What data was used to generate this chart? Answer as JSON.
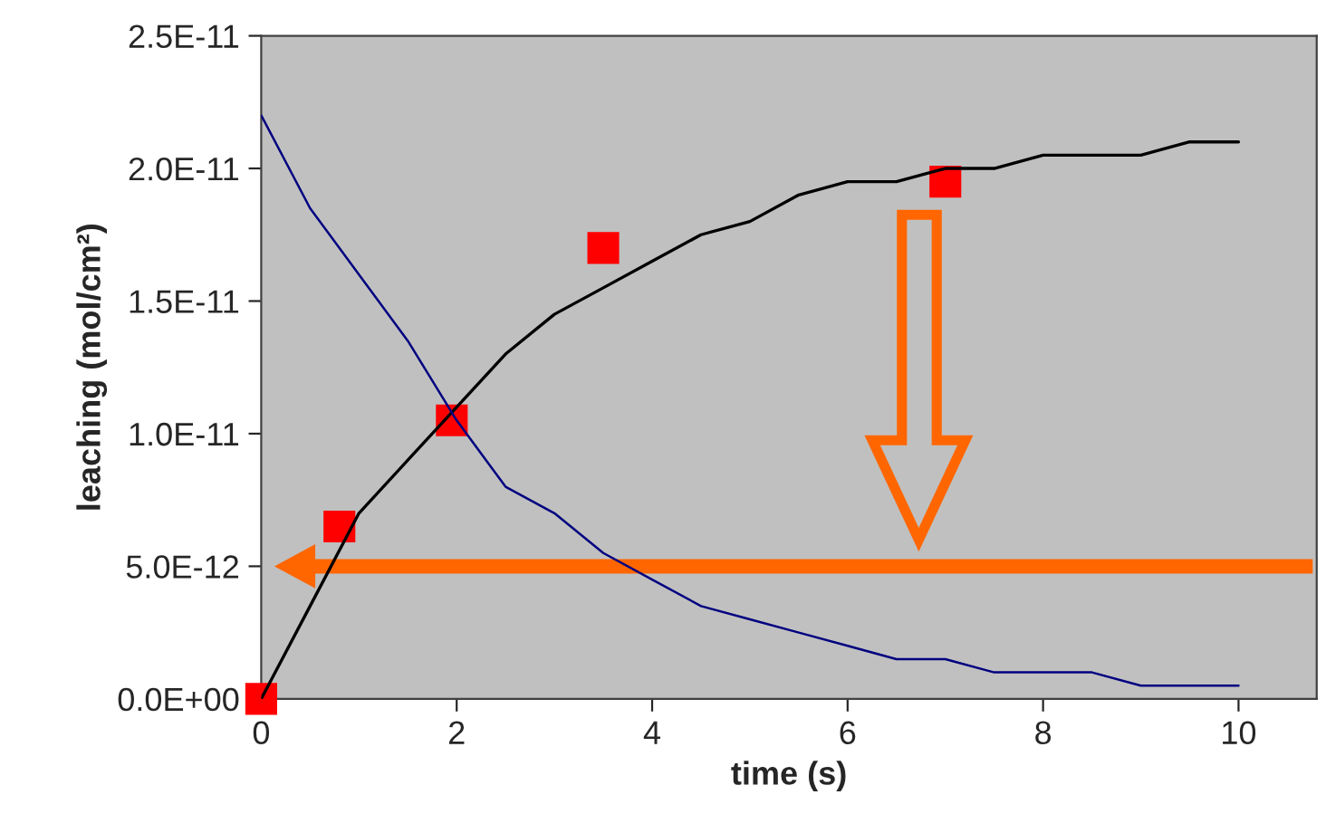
{
  "chart_data": {
    "type": "line",
    "xlabel": "time (s)",
    "ylabel": "leaching (mol/cm²)",
    "xlim": [
      0,
      10.8
    ],
    "xticks": [
      0,
      2,
      4,
      6,
      8,
      10
    ],
    "ylim": [
      0,
      2.5e-11
    ],
    "yticks": [
      {
        "value": 0,
        "label": "0.0E+00"
      },
      {
        "value": 5e-12,
        "label": "5.0E-12"
      },
      {
        "value": 1e-11,
        "label": "1.0E-11"
      },
      {
        "value": 1.5e-11,
        "label": "1.5E-11"
      },
      {
        "value": 2e-11,
        "label": "2.0E-11"
      },
      {
        "value": 2.5e-11,
        "label": "2.5E-11"
      }
    ],
    "grid": false,
    "legend": false,
    "series": [
      {
        "color": "#000000",
        "marker": "none",
        "x": [
          0,
          0.5,
          1,
          1.5,
          2,
          2.5,
          3,
          3.5,
          4,
          4.5,
          5,
          5.5,
          6,
          6.5,
          7,
          7.5,
          8,
          8.5,
          9,
          9.5,
          10
        ],
        "values": [
          0,
          3.5e-12,
          7e-12,
          9e-12,
          1.1e-11,
          1.3e-11,
          1.45e-11,
          1.55e-11,
          1.65e-11,
          1.75e-11,
          1.8e-11,
          1.9e-11,
          1.95e-11,
          1.95e-11,
          2e-11,
          2e-11,
          2.05e-11,
          2.05e-11,
          2.05e-11,
          2.1e-11,
          2.1e-11
        ]
      },
      {
        "color": "#000080",
        "marker": "none",
        "x": [
          0,
          0.5,
          1,
          1.5,
          2,
          2.5,
          3,
          3.5,
          4,
          4.5,
          5,
          5.5,
          6,
          6.5,
          7,
          7.5,
          8,
          8.5,
          9,
          9.5,
          10
        ],
        "values": [
          2.2e-11,
          1.85e-11,
          1.6e-11,
          1.35e-11,
          1.05e-11,
          8e-12,
          7e-12,
          5.5e-12,
          4.5e-12,
          3.5e-12,
          3e-12,
          2.5e-12,
          2e-12,
          1.5e-12,
          1.5e-12,
          1e-12,
          1e-12,
          1e-12,
          5e-13,
          5e-13,
          5e-13
        ]
      },
      {
        "type": "scatter",
        "color": "#ff0000",
        "marker": "square",
        "x": [
          0,
          0.8,
          1.95,
          3.5,
          7
        ],
        "values": [
          0,
          6.5e-12,
          1.05e-11,
          1.7e-11,
          1.95e-11
        ]
      }
    ]
  }
}
